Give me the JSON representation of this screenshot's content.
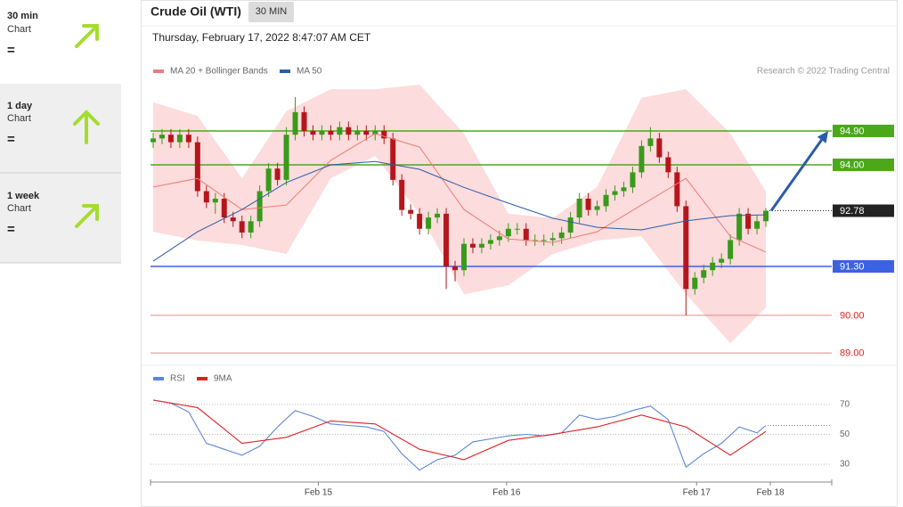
{
  "sidebar": [
    {
      "period": "30 min",
      "label": "Chart",
      "signal": "="
    },
    {
      "period": "1 day",
      "label": "Chart",
      "signal": "="
    },
    {
      "period": "1 week",
      "label": "Chart",
      "signal": "="
    }
  ],
  "header": {
    "title": "Crude Oil (WTI)",
    "interval": "30 MIN",
    "date": "Thursday, February 17, 2022 8:47:07 AM CET"
  },
  "chart_data": [
    {
      "type": "candlestick",
      "credit": "Research © 2022 Trading Central",
      "xlim": [
        -0.3,
        69.8
      ],
      "ylim": [
        88.79,
        96.13
      ],
      "up_color": "#3a9a1b",
      "down_color": "#b5161c",
      "open": [
        94.6,
        94.7,
        94.8,
        94.6,
        94.8,
        94.6,
        93.3,
        93.0,
        93.1,
        92.6,
        92.5,
        92.2,
        92.5,
        93.3,
        93.9,
        93.6,
        94.8,
        95.4,
        94.9,
        94.8,
        94.9,
        94.8,
        95.0,
        94.8,
        94.9,
        94.8,
        94.9,
        94.7,
        93.6,
        92.8,
        92.7,
        92.3,
        92.6,
        92.7,
        91.3,
        91.2,
        91.9,
        91.8,
        91.9,
        92.0,
        92.1,
        92.3,
        92.3,
        92.0,
        92.0,
        92.0,
        92.05,
        92.2,
        92.6,
        93.1,
        92.8,
        92.9,
        93.2,
        93.3,
        93.4,
        93.8,
        94.5,
        94.7,
        94.2,
        93.8,
        92.9,
        90.7,
        91.0,
        91.2,
        91.4,
        91.5,
        92.0,
        92.7,
        92.3,
        92.5
      ],
      "high": [
        94.85,
        94.95,
        94.95,
        94.95,
        94.95,
        94.75,
        93.45,
        93.25,
        93.25,
        92.75,
        92.65,
        92.65,
        93.45,
        94.05,
        94.05,
        95.0,
        95.8,
        95.55,
        95.05,
        95.05,
        95.05,
        95.15,
        95.15,
        95.05,
        95.05,
        95.05,
        95.05,
        94.85,
        93.75,
        92.95,
        92.85,
        92.75,
        92.85,
        92.85,
        91.45,
        92.05,
        92.05,
        92.05,
        92.15,
        92.25,
        92.45,
        92.45,
        92.45,
        92.15,
        92.15,
        92.2,
        92.35,
        92.75,
        93.25,
        93.25,
        93.05,
        93.35,
        93.45,
        93.55,
        93.95,
        94.65,
        95.0,
        94.85,
        94.35,
        93.95,
        93.05,
        91.15,
        91.35,
        91.55,
        91.65,
        92.15,
        92.85,
        92.85,
        92.65,
        92.85
      ],
      "low": [
        94.45,
        94.55,
        94.45,
        94.45,
        94.45,
        93.15,
        92.85,
        92.7,
        92.45,
        92.35,
        92.05,
        92.05,
        92.35,
        93.15,
        93.45,
        93.45,
        94.65,
        94.75,
        94.65,
        94.65,
        94.65,
        94.65,
        94.65,
        94.65,
        94.65,
        94.65,
        94.55,
        93.45,
        92.65,
        92.55,
        92.15,
        92.15,
        92.45,
        90.7,
        90.9,
        91.05,
        91.65,
        91.65,
        91.75,
        91.85,
        91.95,
        92.15,
        91.85,
        91.85,
        91.85,
        91.85,
        91.9,
        92.05,
        92.45,
        92.65,
        92.65,
        92.75,
        93.05,
        93.15,
        93.25,
        93.65,
        94.35,
        94.05,
        93.65,
        92.75,
        90.0,
        90.55,
        90.85,
        91.05,
        91.25,
        91.35,
        91.85,
        92.15,
        92.15,
        92.35
      ],
      "close": [
        94.7,
        94.8,
        94.6,
        94.8,
        94.6,
        93.3,
        93.0,
        93.1,
        92.6,
        92.5,
        92.2,
        92.5,
        93.3,
        93.9,
        93.6,
        94.8,
        95.4,
        94.9,
        94.8,
        94.9,
        94.8,
        95.0,
        94.8,
        94.9,
        94.8,
        94.9,
        94.7,
        93.6,
        92.8,
        92.7,
        92.3,
        92.6,
        92.7,
        91.3,
        91.2,
        91.9,
        91.8,
        91.9,
        92.0,
        92.1,
        92.3,
        92.3,
        92.0,
        92.0,
        92.0,
        92.05,
        92.2,
        92.6,
        93.1,
        92.8,
        92.9,
        93.2,
        93.3,
        93.4,
        93.8,
        94.5,
        94.7,
        94.2,
        93.8,
        92.9,
        90.7,
        91.0,
        91.2,
        91.4,
        91.5,
        92.0,
        92.7,
        92.3,
        92.5,
        92.78
      ],
      "overlays": [
        {
          "name": "MA 20 + Bollinger Bands",
          "color": "#ef7b7b",
          "band_color": "#fcdcdc",
          "x": [
            0,
            5,
            10,
            15,
            20,
            25,
            30,
            35,
            40,
            45,
            50,
            55,
            60,
            65,
            69
          ],
          "values": [
            93.41,
            93.64,
            92.81,
            92.93,
            94.12,
            94.83,
            94.47,
            92.81,
            92.03,
            91.94,
            92.22,
            92.93,
            93.64,
            92.1,
            91.68
          ],
          "upper": [
            95.66,
            95.3,
            93.64,
            95.42,
            96.01,
            96.01,
            96.13,
            94.83,
            92.7,
            92.58,
            93.41,
            95.78,
            96.01,
            94.83,
            93.29
          ],
          "lower": [
            92.22,
            91.99,
            91.87,
            91.63,
            93.64,
            94.24,
            92.7,
            90.56,
            90.8,
            91.63,
            91.99,
            92.1,
            90.56,
            89.26,
            90.21
          ]
        },
        {
          "name": "MA 50",
          "color": "#2b5ca8",
          "x": [
            0,
            5,
            10,
            15,
            20,
            25,
            30,
            35,
            40,
            45,
            50,
            55,
            60,
            65,
            69
          ],
          "values": [
            91.44,
            92.22,
            92.81,
            93.53,
            94.0,
            94.09,
            93.88,
            93.4,
            92.98,
            92.58,
            92.34,
            92.27,
            92.51,
            92.65,
            92.67
          ]
        }
      ],
      "levels": [
        {
          "value": 94.9,
          "label": "94.90",
          "color": "#4aa81a",
          "box": true,
          "line": "solid"
        },
        {
          "value": 94.0,
          "label": "94.00",
          "color": "#4aa81a",
          "box": true,
          "line": "solid"
        },
        {
          "value": 91.3,
          "label": "91.30",
          "color": "#3b62e0",
          "box": true,
          "line": "solid"
        },
        {
          "value": 90.0,
          "label": "90.00",
          "color": "#e08a8a",
          "box": false,
          "line": "solid"
        },
        {
          "value": 89.0,
          "label": "89.00",
          "color": "#e08a8a",
          "box": false,
          "line": "solid"
        },
        {
          "value": 92.78,
          "label": "92.78",
          "color": "#222222",
          "box": true,
          "line": "dotted"
        }
      ],
      "target_color": "#2b5ca8"
    },
    {
      "type": "line",
      "xlim": [
        -0.3,
        69.8
      ],
      "ylim": [
        20.4,
        78.4
      ],
      "yticks": [
        30,
        50,
        70
      ],
      "grid": "dotted",
      "xticks": [
        {
          "value": 18.6,
          "label": "Feb 15"
        },
        {
          "value": 39.8,
          "label": "Feb 16"
        },
        {
          "value": 61.2,
          "label": "Feb 17"
        },
        {
          "value": 69.5,
          "label": "Feb 18"
        }
      ],
      "series": [
        {
          "name": "RSI",
          "color": "#5b86d8",
          "x": [
            0,
            2,
            4,
            6,
            8,
            10,
            12,
            14,
            16,
            18,
            20,
            22,
            24,
            26,
            28,
            30,
            32,
            34,
            36,
            38,
            40,
            42,
            44,
            46,
            48,
            50,
            52,
            54,
            56,
            58,
            60,
            62,
            64,
            66,
            68,
            69
          ],
          "values": [
            73,
            71,
            65,
            44,
            40,
            36,
            42,
            55,
            66,
            62,
            57,
            56,
            55,
            52,
            37,
            26,
            33,
            36,
            45,
            47,
            49,
            50,
            49,
            51,
            63,
            60,
            62,
            66,
            69,
            60,
            28,
            37,
            44,
            55,
            51,
            56
          ]
        },
        {
          "name": "9MA",
          "color": "#e02020",
          "x": [
            0,
            5,
            10,
            15,
            20,
            25,
            30,
            35,
            40,
            45,
            50,
            55,
            60,
            65,
            69
          ],
          "values": [
            73,
            68,
            44,
            48,
            59,
            57,
            40,
            33,
            46,
            50,
            55,
            63,
            55,
            36,
            52
          ]
        }
      ]
    }
  ]
}
